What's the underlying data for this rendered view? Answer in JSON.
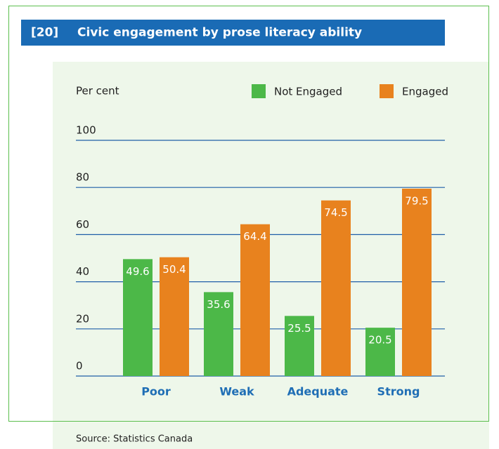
{
  "chart_data": {
    "type": "bar",
    "figure_label": "[20]",
    "title": "Civic engagement by prose literacy ability",
    "y_label": "Per cent",
    "categories": [
      "Poor",
      "Weak",
      "Adequate",
      "Strong"
    ],
    "series": [
      {
        "name": "Not Engaged",
        "color": "#4cb848",
        "values": [
          49.6,
          35.6,
          25.5,
          20.5
        ]
      },
      {
        "name": "Engaged",
        "color": "#e8821e",
        "values": [
          50.4,
          64.4,
          74.5,
          79.5
        ]
      }
    ],
    "ylim": [
      0,
      100
    ],
    "yticks": [
      0,
      20,
      40,
      60,
      80,
      100
    ],
    "grid": true,
    "source": "Source: Statistics Canada"
  }
}
